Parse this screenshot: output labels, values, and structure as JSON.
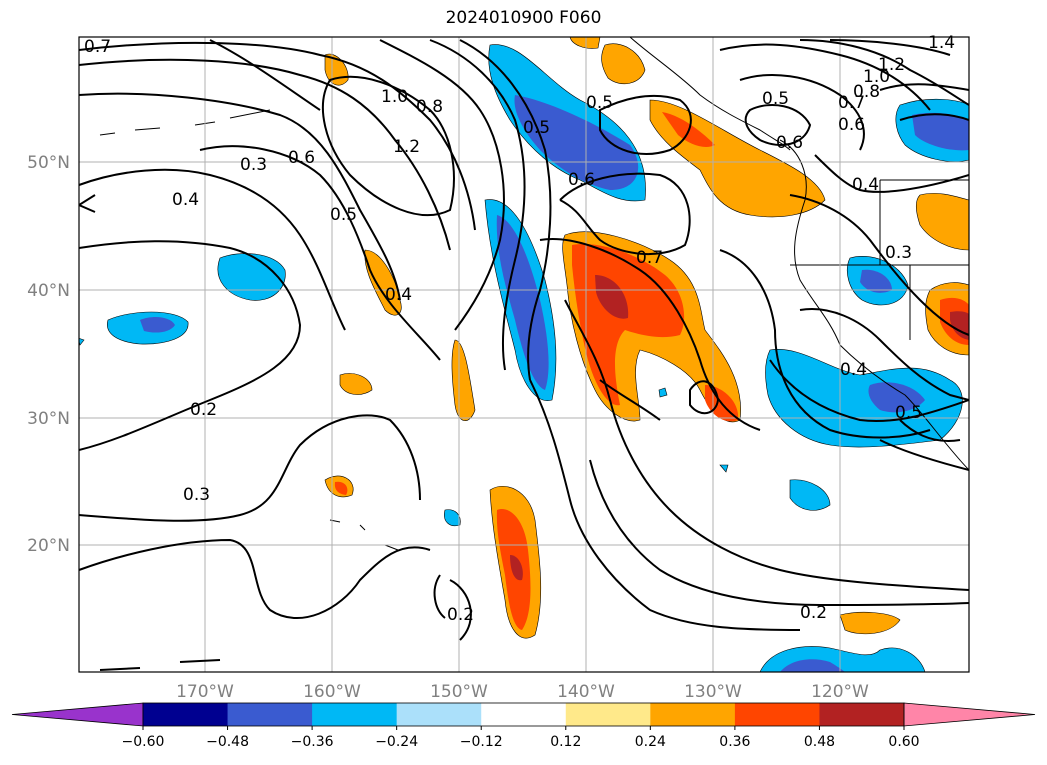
{
  "title": "2024010900 F060",
  "lat_labels": [
    "50°N",
    "40°N",
    "30°N",
    "20°N"
  ],
  "lon_labels": [
    "170°W",
    "160°W",
    "150°W",
    "140°W",
    "130°W",
    "120°W"
  ],
  "contour_labels": [
    "0.7",
    "1.4",
    "1.0",
    "0.8",
    "1.2",
    "0.5",
    "0.5",
    "1.0",
    "0.8",
    "1.2",
    "0.7",
    "0.6",
    "0.6",
    "0.5",
    "0.6",
    "0.3",
    "0.4",
    "0.6",
    "0.5",
    "0.7",
    "0.4",
    "0.4",
    "0.3",
    "0.4",
    "0.2",
    "0.3",
    "0.2",
    "0.2",
    "0.5"
  ],
  "colorbar": {
    "ticks": [
      "−0.60",
      "−0.48",
      "−0.36",
      "−0.24",
      "−0.12",
      "0.12",
      "0.24",
      "0.36",
      "0.48",
      "0.60"
    ],
    "colors": [
      "#9933cc",
      "#000090",
      "#3a5bd0",
      "#00b8f5",
      "#abe0fa",
      "#ffffff",
      "#ffe98a",
      "#ffa500",
      "#ff4500",
      "#b22222",
      "#ff85a8"
    ]
  },
  "map_colors": {
    "ocean": "#ffffff",
    "grid": "#b0b0b0",
    "contour": "#000000"
  }
}
